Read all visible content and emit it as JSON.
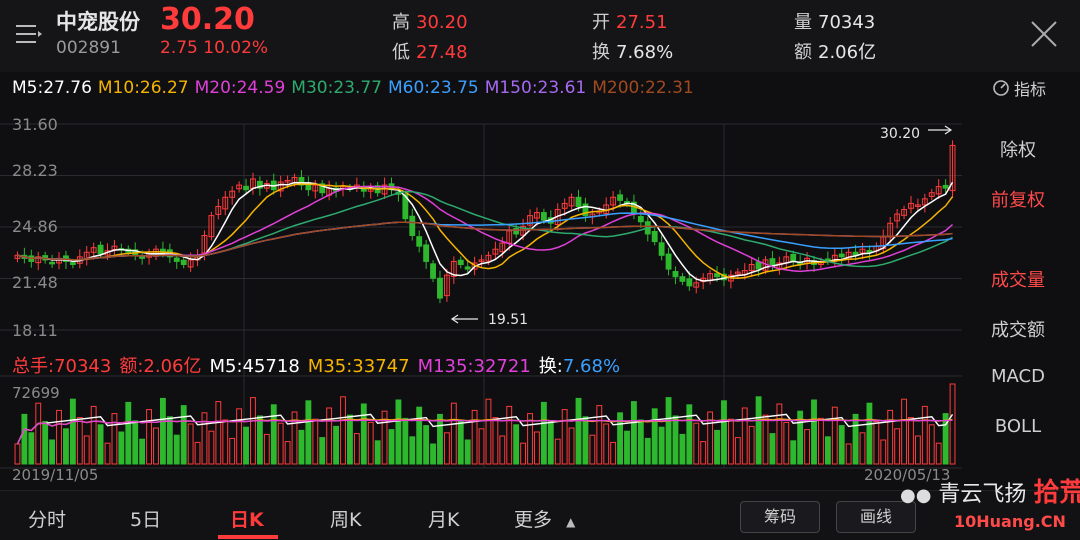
{
  "header": {
    "name": "中宠股份",
    "code": "002891",
    "price": "30.20",
    "change": "2.75  10.02%",
    "high_label": "高",
    "high": "30.20",
    "low_label": "低",
    "low": "27.48",
    "open_label": "开",
    "open": "27.51",
    "turnover_label": "换",
    "turnover": "7.68%",
    "volume_label": "量",
    "volume": "70343",
    "amount_label": "额",
    "amount": "2.06亿"
  },
  "ma_legend": [
    {
      "text": "M5:27.76",
      "color": "#ffffff"
    },
    {
      "text": "M10:26.27",
      "color": "#f5b400"
    },
    {
      "text": "M20:24.59",
      "color": "#e040d8"
    },
    {
      "text": "M30:23.77",
      "color": "#2eaa6e"
    },
    {
      "text": "M60:23.75",
      "color": "#3aa0ff"
    },
    {
      "text": "M150:23.61",
      "color": "#a66af0"
    },
    {
      "text": "M200:22.31",
      "color": "#a04a20"
    }
  ],
  "indicator_label": "指标",
  "price_axis": [
    "31.60",
    "28.23",
    "24.86",
    "21.48",
    "18.11"
  ],
  "annotations": {
    "high_marker": "30.20",
    "low_marker": "19.51"
  },
  "volume_axis_max": "72699",
  "date_start": "2019/11/05",
  "date_end": "2020/05/13",
  "vol_legend": [
    {
      "text": "总手:70343",
      "color": "#ff3b3b"
    },
    {
      "text": "额:2.06亿",
      "color": "#ff3b3b"
    },
    {
      "text": "M5:45718",
      "color": "#ffffff"
    },
    {
      "text": "M35:33747",
      "color": "#f5b400"
    },
    {
      "text": "M135:32721",
      "color": "#e040d8"
    },
    {
      "text": "换:",
      "color": "#ffffff"
    },
    {
      "text": "7.68%",
      "color": "#3aa0ff"
    }
  ],
  "right_panel": [
    "除权",
    "前复权",
    "成交量",
    "成交额",
    "MACD",
    "BOLL"
  ],
  "tabs": [
    "分时",
    "5日",
    "日K",
    "周K",
    "月K",
    "更多"
  ],
  "buttons": {
    "chips": "筹码",
    "draw": "画线"
  },
  "watermark": {
    "text": "青云飞扬",
    "brand": "拾荒网",
    "site": "10Huang.CN"
  },
  "colors": {
    "up": "#ff3b3b",
    "down": "#2eb82e",
    "bg": "#0f0f12"
  },
  "chart_data": {
    "type": "candlestick",
    "ylim": [
      18.11,
      31.6
    ],
    "close": [
      23.0,
      22.8,
      22.6,
      22.9,
      22.7,
      22.5,
      22.8,
      22.6,
      22.4,
      22.9,
      23.2,
      23.5,
      23.1,
      23.3,
      23.6,
      23.4,
      23.2,
      23.0,
      22.8,
      23.1,
      23.4,
      23.2,
      22.9,
      22.6,
      22.4,
      22.7,
      23.0,
      24.3,
      25.6,
      26.2,
      26.8,
      27.2,
      27.6,
      27.3,
      28.0,
      27.4,
      27.7,
      27.3,
      27.8,
      27.9,
      28.1,
      27.6,
      27.3,
      27.6,
      27.1,
      27.4,
      27.2,
      27.5,
      27.4,
      27.6,
      27.2,
      27.4,
      27.1,
      27.6,
      27.3,
      27.0,
      25.4,
      24.3,
      23.6,
      22.6,
      21.5,
      20.2,
      21.7,
      22.6,
      22.4,
      22.1,
      22.5,
      22.7,
      23.0,
      23.4,
      23.8,
      24.6,
      24.4,
      24.9,
      25.6,
      25.8,
      25.3,
      25.1,
      26.0,
      26.4,
      26.8,
      26.2,
      25.6,
      25.7,
      25.9,
      26.3,
      26.8,
      26.6,
      26.4,
      25.7,
      25.2,
      24.4,
      23.9,
      23.0,
      22.1,
      21.6,
      21.3,
      21.0,
      21.2,
      21.5,
      21.8,
      21.6,
      21.4,
      21.7,
      21.9,
      22.0,
      22.4,
      22.1,
      22.7,
      22.3,
      22.5,
      22.9,
      22.6,
      22.4,
      22.8,
      22.4,
      22.6,
      22.7,
      23.0,
      22.9,
      23.2,
      23.0,
      23.4,
      23.2,
      23.6,
      24.2,
      25.1,
      25.7,
      26.0,
      26.4,
      26.3,
      26.7,
      27.1,
      27.5,
      27.4,
      30.2
    ],
    "volume_max": 72699,
    "date_range": [
      "2019/11/05",
      "2020/05/13"
    ]
  }
}
